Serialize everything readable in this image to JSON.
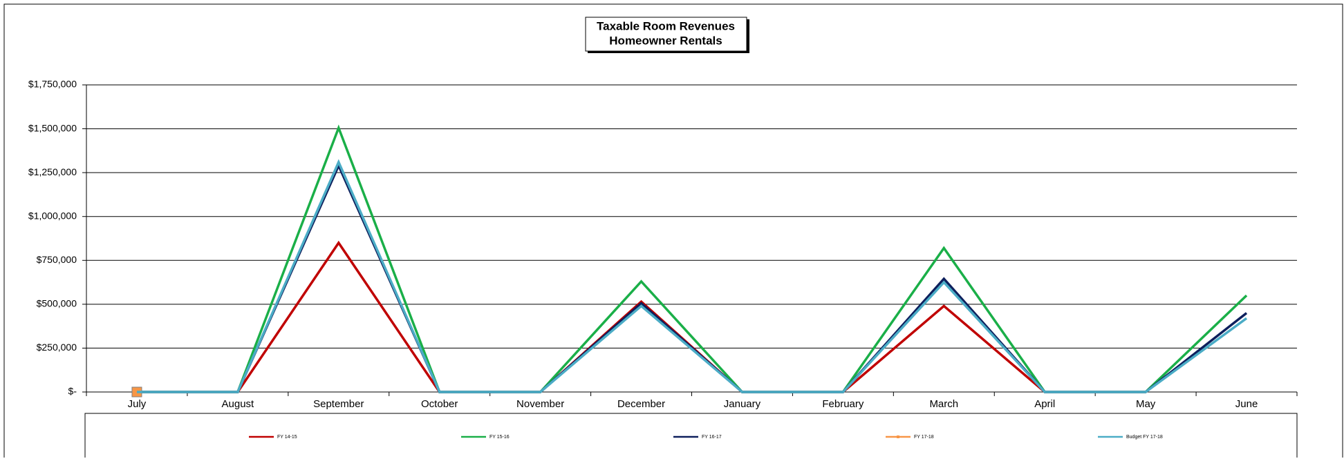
{
  "chart_data": {
    "type": "line",
    "title": "Taxable Room Revenues",
    "subtitle": "Homeowner Rentals",
    "categories": [
      "July",
      "August",
      "September",
      "October",
      "November",
      "December",
      "January",
      "February",
      "March",
      "April",
      "May",
      "June"
    ],
    "series": [
      {
        "name": "FY 14-15",
        "color": "#c00000",
        "values": [
          0,
          0,
          850000,
          0,
          0,
          515000,
          0,
          0,
          490000,
          0,
          0,
          null
        ]
      },
      {
        "name": "FY 15-16",
        "color": "#1aaf48",
        "values": [
          0,
          0,
          1505000,
          0,
          0,
          630000,
          0,
          0,
          820000,
          0,
          0,
          550000
        ]
      },
      {
        "name": "FY 16-17",
        "color": "#0d1f5c",
        "values": [
          0,
          0,
          1290000,
          0,
          0,
          505000,
          0,
          0,
          645000,
          0,
          0,
          450000
        ]
      },
      {
        "name": "FY 17-18",
        "color": "#f79646",
        "marker": "square",
        "values": [
          0,
          null,
          null,
          null,
          null,
          null,
          null,
          null,
          null,
          null,
          null,
          null
        ]
      },
      {
        "name": "Budget FY 17-18",
        "color": "#4bacc6",
        "values": [
          0,
          0,
          1310000,
          0,
          0,
          490000,
          0,
          0,
          625000,
          0,
          0,
          420000
        ]
      }
    ],
    "ylim": [
      0,
      1750000
    ],
    "yticks": [
      {
        "value": 0,
        "label": "$-"
      },
      {
        "value": 250000,
        "label": "$250,000"
      },
      {
        "value": 500000,
        "label": "$500,000"
      },
      {
        "value": 750000,
        "label": "$750,000"
      },
      {
        "value": 1000000,
        "label": "$1,000,000"
      },
      {
        "value": 1250000,
        "label": "$1,250,000"
      },
      {
        "value": 1500000,
        "label": "$1,500,000"
      },
      {
        "value": 1750000,
        "label": "$1,750,000"
      }
    ],
    "grid": true,
    "legend": "bottom"
  }
}
